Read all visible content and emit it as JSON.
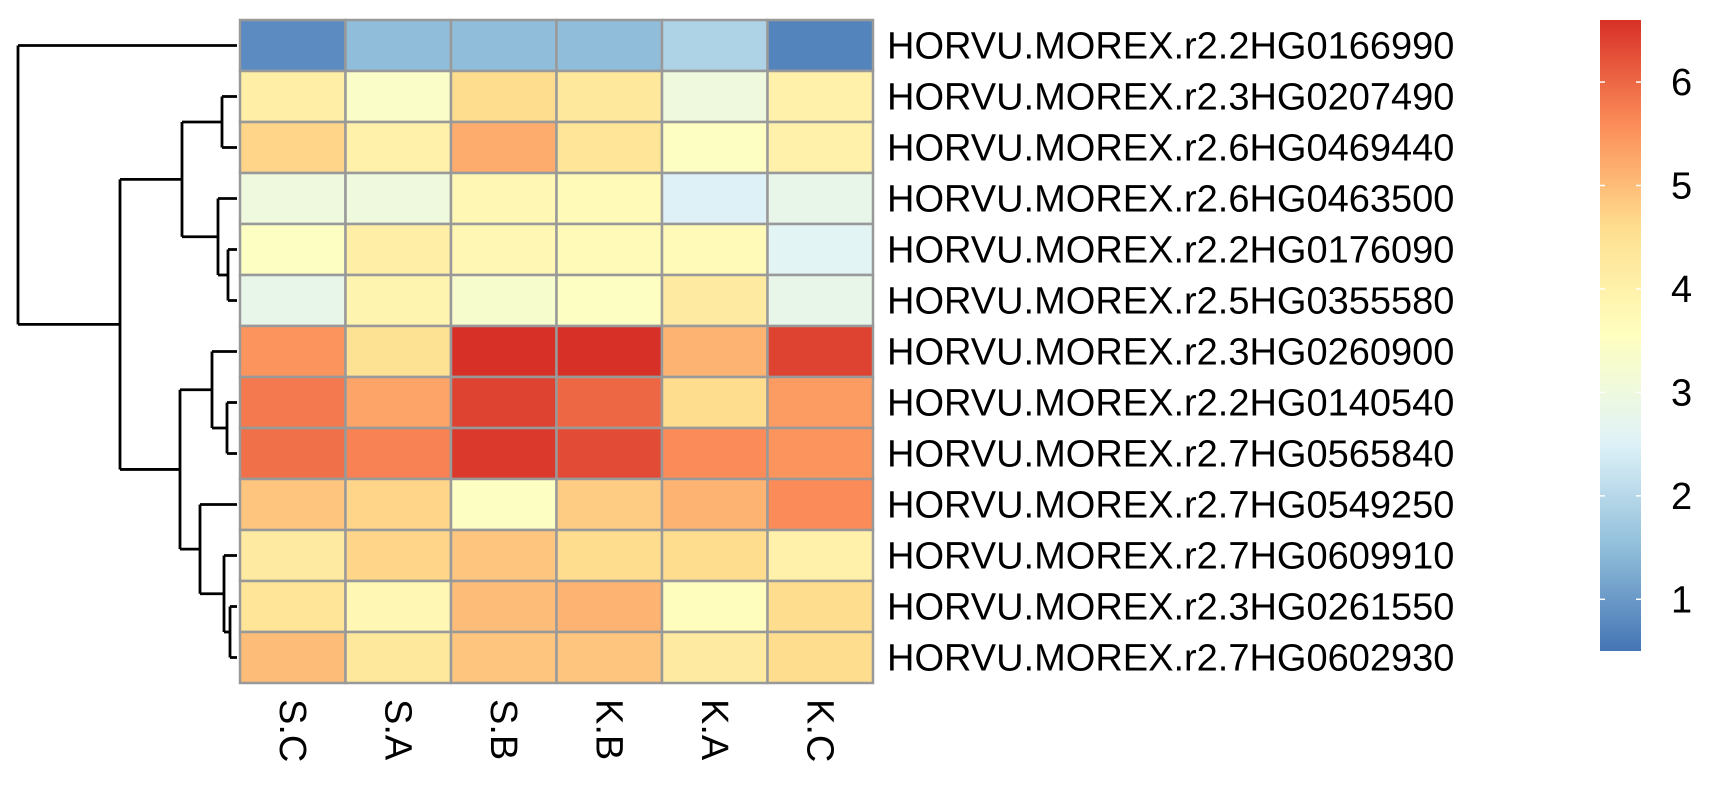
{
  "chart_data": {
    "type": "heatmap",
    "title": "",
    "xlabel": "",
    "ylabel": "",
    "columns": [
      "S.C",
      "S.A",
      "S.B",
      "K.B",
      "K.A",
      "K.C"
    ],
    "rows": [
      "HORVU.MOREX.r2.2HG0166990",
      "HORVU.MOREX.r2.3HG0207490",
      "HORVU.MOREX.r2.6HG0469440",
      "HORVU.MOREX.r2.6HG0463500",
      "HORVU.MOREX.r2.2HG0176090",
      "HORVU.MOREX.r2.5HG0355580",
      "HORVU.MOREX.r2.3HG0260900",
      "HORVU.MOREX.r2.2HG0140540",
      "HORVU.MOREX.r2.7HG0565840",
      "HORVU.MOREX.r2.7HG0549250",
      "HORVU.MOREX.r2.7HG0609910",
      "HORVU.MOREX.r2.3HG0261550",
      "HORVU.MOREX.r2.7HG0602930"
    ],
    "values": [
      [
        0.8,
        1.5,
        1.5,
        1.5,
        1.9,
        0.7
      ],
      [
        4.1,
        3.4,
        4.6,
        4.3,
        3.0,
        4.0
      ],
      [
        4.7,
        4.0,
        5.2,
        4.4,
        3.5,
        4.0
      ],
      [
        3.0,
        3.0,
        3.8,
        3.7,
        2.5,
        2.8
      ],
      [
        3.5,
        4.1,
        3.8,
        3.7,
        3.7,
        2.6
      ],
      [
        2.8,
        3.9,
        3.3,
        3.5,
        4.2,
        2.8
      ],
      [
        5.5,
        4.5,
        6.6,
        6.6,
        5.1,
        6.4
      ],
      [
        5.8,
        5.3,
        6.4,
        6.0,
        4.6,
        5.4
      ],
      [
        5.9,
        5.7,
        6.5,
        6.3,
        5.6,
        5.5
      ],
      [
        4.9,
        4.7,
        3.5,
        4.8,
        5.1,
        5.6
      ],
      [
        4.2,
        4.7,
        4.9,
        4.6,
        4.6,
        4.0
      ],
      [
        4.4,
        3.8,
        5.0,
        5.1,
        3.6,
        4.6
      ],
      [
        5.0,
        4.3,
        4.9,
        4.9,
        4.2,
        4.6
      ]
    ],
    "legend": {
      "min": 0.5,
      "max": 6.6,
      "ticks": [
        1,
        2,
        3,
        4,
        5,
        6
      ],
      "colors": [
        "#4575b4",
        "#91bfdb",
        "#e0f3f8",
        "#ffffbf",
        "#fee090",
        "#fc8d59",
        "#d73027"
      ]
    },
    "cell_border_color": "#999999",
    "dendrogram": "rows",
    "grid": false
  }
}
